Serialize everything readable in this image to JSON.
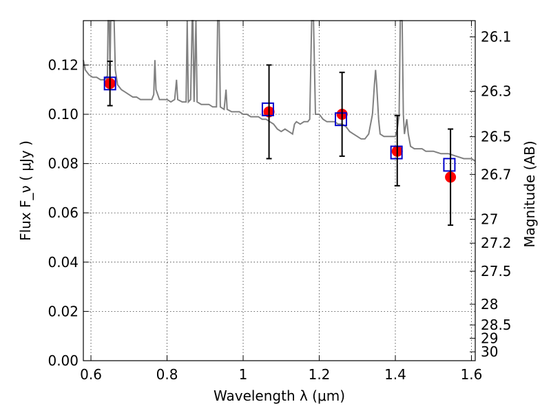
{
  "chart_data": {
    "type": "scatter",
    "xlabel": "Wavelength  λ (μm)",
    "ylabel": "Flux  F_ν  ( μJy )",
    "y2label": "Magnitude (AB)",
    "xlim": [
      0.58,
      1.61
    ],
    "ylim": [
      0.0,
      0.138
    ],
    "grid": true,
    "x_ticks": [
      {
        "value": 0.6,
        "label": "0.6"
      },
      {
        "value": 0.8,
        "label": "0.8"
      },
      {
        "value": 1.0,
        "label": "1"
      },
      {
        "value": 1.2,
        "label": "1.2"
      },
      {
        "value": 1.4,
        "label": "1.4"
      },
      {
        "value": 1.6,
        "label": "1.6"
      }
    ],
    "y_ticks": [
      {
        "value": 0.0,
        "label": "0.00"
      },
      {
        "value": 0.02,
        "label": "0.02"
      },
      {
        "value": 0.04,
        "label": "0.04"
      },
      {
        "value": 0.06,
        "label": "0.06"
      },
      {
        "value": 0.08,
        "label": "0.08"
      },
      {
        "value": 0.1,
        "label": "0.10"
      },
      {
        "value": 0.12,
        "label": "0.12"
      }
    ],
    "y2_ticks": [
      {
        "label": "26.1",
        "flux": 0.1314
      },
      {
        "label": "26.3",
        "flux": 0.1093
      },
      {
        "label": "26.5",
        "flux": 0.0909
      },
      {
        "label": "26.7",
        "flux": 0.0756
      },
      {
        "label": "27",
        "flux": 0.0574
      },
      {
        "label": "27.2",
        "flux": 0.0477
      },
      {
        "label": "27.5",
        "flux": 0.0363
      },
      {
        "label": "28",
        "flux": 0.0229
      },
      {
        "label": "28.5",
        "flux": 0.0145
      },
      {
        "label": "29",
        "flux": 0.0091
      },
      {
        "label": "30",
        "flux": 0.0036
      }
    ],
    "model_spectrum": {
      "color": "#808080",
      "points": [
        [
          0.58,
          0.122
        ],
        [
          0.585,
          0.118
        ],
        [
          0.595,
          0.116
        ],
        [
          0.605,
          0.115
        ],
        [
          0.615,
          0.115
        ],
        [
          0.625,
          0.114
        ],
        [
          0.635,
          0.114
        ],
        [
          0.64,
          0.115
        ],
        [
          0.643,
          0.112
        ],
        [
          0.645,
          0.14
        ],
        [
          0.648,
          0.14
        ],
        [
          0.65,
          0.118
        ],
        [
          0.652,
          0.14
        ],
        [
          0.655,
          0.14
        ],
        [
          0.658,
          0.14
        ],
        [
          0.661,
          0.14
        ],
        [
          0.664,
          0.118
        ],
        [
          0.67,
          0.112
        ],
        [
          0.68,
          0.11
        ],
        [
          0.69,
          0.109
        ],
        [
          0.7,
          0.108
        ],
        [
          0.71,
          0.107
        ],
        [
          0.72,
          0.107
        ],
        [
          0.73,
          0.106
        ],
        [
          0.74,
          0.106
        ],
        [
          0.75,
          0.106
        ],
        [
          0.76,
          0.106
        ],
        [
          0.765,
          0.108
        ],
        [
          0.768,
          0.122
        ],
        [
          0.771,
          0.11
        ],
        [
          0.78,
          0.106
        ],
        [
          0.79,
          0.106
        ],
        [
          0.8,
          0.106
        ],
        [
          0.81,
          0.105
        ],
        [
          0.82,
          0.106
        ],
        [
          0.825,
          0.114
        ],
        [
          0.828,
          0.106
        ],
        [
          0.84,
          0.105
        ],
        [
          0.85,
          0.105
        ],
        [
          0.853,
          0.14
        ],
        [
          0.856,
          0.105
        ],
        [
          0.862,
          0.106
        ],
        [
          0.866,
          0.14
        ],
        [
          0.868,
          0.14
        ],
        [
          0.871,
          0.105
        ],
        [
          0.876,
          0.14
        ],
        [
          0.879,
          0.105
        ],
        [
          0.89,
          0.104
        ],
        [
          0.9,
          0.104
        ],
        [
          0.91,
          0.104
        ],
        [
          0.92,
          0.103
        ],
        [
          0.93,
          0.103
        ],
        [
          0.933,
          0.14
        ],
        [
          0.937,
          0.14
        ],
        [
          0.94,
          0.103
        ],
        [
          0.95,
          0.102
        ],
        [
          0.955,
          0.11
        ],
        [
          0.958,
          0.102
        ],
        [
          0.97,
          0.101
        ],
        [
          0.98,
          0.101
        ],
        [
          0.99,
          0.101
        ],
        [
          1.0,
          0.1
        ],
        [
          1.01,
          0.1
        ],
        [
          1.02,
          0.099
        ],
        [
          1.03,
          0.099
        ],
        [
          1.04,
          0.099
        ],
        [
          1.05,
          0.098
        ],
        [
          1.06,
          0.098
        ],
        [
          1.07,
          0.097
        ],
        [
          1.08,
          0.096
        ],
        [
          1.09,
          0.094
        ],
        [
          1.1,
          0.093
        ],
        [
          1.11,
          0.094
        ],
        [
          1.12,
          0.093
        ],
        [
          1.13,
          0.092
        ],
        [
          1.135,
          0.096
        ],
        [
          1.14,
          0.097
        ],
        [
          1.15,
          0.096
        ],
        [
          1.16,
          0.097
        ],
        [
          1.17,
          0.097
        ],
        [
          1.175,
          0.098
        ],
        [
          1.18,
          0.14
        ],
        [
          1.185,
          0.14
        ],
        [
          1.19,
          0.1
        ],
        [
          1.2,
          0.1
        ],
        [
          1.21,
          0.098
        ],
        [
          1.22,
          0.097
        ],
        [
          1.23,
          0.097
        ],
        [
          1.24,
          0.097
        ],
        [
          1.25,
          0.096
        ],
        [
          1.26,
          0.096
        ],
        [
          1.27,
          0.095
        ],
        [
          1.28,
          0.093
        ],
        [
          1.29,
          0.092
        ],
        [
          1.3,
          0.091
        ],
        [
          1.31,
          0.09
        ],
        [
          1.32,
          0.09
        ],
        [
          1.33,
          0.092
        ],
        [
          1.34,
          0.1
        ],
        [
          1.345,
          0.112
        ],
        [
          1.348,
          0.118
        ],
        [
          1.351,
          0.112
        ],
        [
          1.356,
          0.098
        ],
        [
          1.36,
          0.092
        ],
        [
          1.37,
          0.091
        ],
        [
          1.38,
          0.091
        ],
        [
          1.39,
          0.091
        ],
        [
          1.4,
          0.091
        ],
        [
          1.405,
          0.094
        ],
        [
          1.41,
          0.1
        ],
        [
          1.413,
          0.14
        ],
        [
          1.418,
          0.14
        ],
        [
          1.421,
          0.1
        ],
        [
          1.424,
          0.092
        ],
        [
          1.43,
          0.098
        ],
        [
          1.434,
          0.092
        ],
        [
          1.44,
          0.087
        ],
        [
          1.45,
          0.086
        ],
        [
          1.46,
          0.086
        ],
        [
          1.47,
          0.086
        ],
        [
          1.48,
          0.085
        ],
        [
          1.5,
          0.085
        ],
        [
          1.52,
          0.084
        ],
        [
          1.54,
          0.084
        ],
        [
          1.56,
          0.083
        ],
        [
          1.58,
          0.082
        ],
        [
          1.6,
          0.082
        ],
        [
          1.61,
          0.081
        ]
      ]
    },
    "series": [
      {
        "marker": "square-open",
        "color": "#0000cc",
        "points": [
          {
            "x": 0.65,
            "y": 0.1125
          },
          {
            "x": 1.065,
            "y": 0.102
          },
          {
            "x": 1.257,
            "y": 0.098
          },
          {
            "x": 1.403,
            "y": 0.0845
          },
          {
            "x": 1.542,
            "y": 0.0795
          }
        ]
      },
      {
        "marker": "circle",
        "color": "#ff0000",
        "points": [
          {
            "x": 0.65,
            "y": 0.1125,
            "yerr_low": 0.1035,
            "yerr_high": 0.1215
          },
          {
            "x": 1.068,
            "y": 0.101,
            "yerr_low": 0.082,
            "yerr_high": 0.12
          },
          {
            "x": 1.26,
            "y": 0.1,
            "yerr_low": 0.083,
            "yerr_high": 0.117
          },
          {
            "x": 1.405,
            "y": 0.085,
            "yerr_low": 0.071,
            "yerr_high": 0.0995
          },
          {
            "x": 1.545,
            "y": 0.0745,
            "yerr_low": 0.055,
            "yerr_high": 0.094
          }
        ]
      }
    ]
  }
}
